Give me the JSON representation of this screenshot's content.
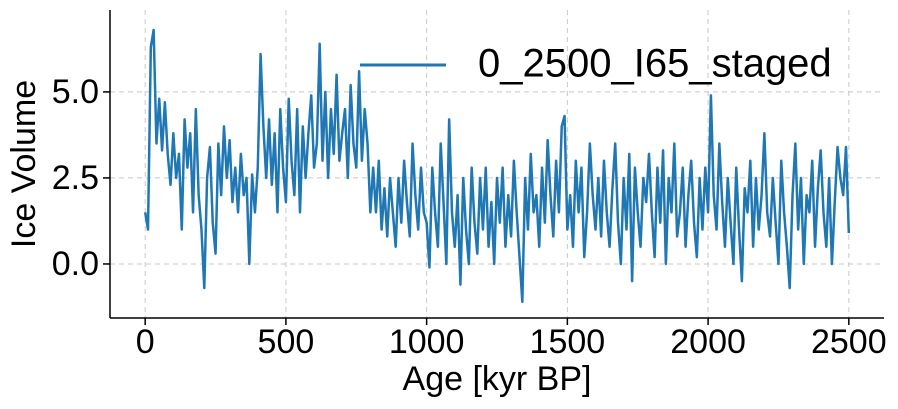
{
  "chart_data": {
    "type": "line",
    "xlabel": "Age [kyr BP]",
    "ylabel": "Ice Volume",
    "xlim": [
      -125,
      2625
    ],
    "ylim": [
      -1.57,
      7.38
    ],
    "xticks": [
      0,
      500,
      1000,
      1500,
      2000,
      2500
    ],
    "yticks": [
      {
        "value": 0,
        "label": "0.0"
      },
      2.5,
      {
        "value": 5,
        "label": "5.0"
      }
    ],
    "grid": true,
    "legend": "upper right",
    "x": [
      0,
      10,
      20,
      30,
      40,
      50,
      60,
      70,
      80,
      90,
      100,
      110,
      120,
      130,
      140,
      150,
      160,
      170,
      180,
      190,
      200,
      210,
      220,
      230,
      240,
      250,
      260,
      270,
      280,
      290,
      300,
      310,
      320,
      330,
      340,
      350,
      360,
      370,
      380,
      390,
      400,
      410,
      420,
      430,
      440,
      450,
      460,
      470,
      480,
      490,
      500,
      510,
      520,
      530,
      540,
      550,
      560,
      570,
      580,
      590,
      600,
      610,
      620,
      630,
      640,
      650,
      660,
      670,
      680,
      690,
      700,
      710,
      720,
      730,
      740,
      750,
      760,
      770,
      780,
      790,
      800,
      810,
      820,
      830,
      840,
      850,
      860,
      870,
      880,
      890,
      900,
      910,
      920,
      930,
      940,
      950,
      960,
      970,
      980,
      990,
      1000,
      1010,
      1020,
      1030,
      1040,
      1050,
      1060,
      1070,
      1080,
      1090,
      1100,
      1110,
      1120,
      1130,
      1140,
      1150,
      1160,
      1170,
      1180,
      1190,
      1200,
      1210,
      1220,
      1230,
      1240,
      1250,
      1260,
      1270,
      1280,
      1290,
      1300,
      1310,
      1320,
      1330,
      1340,
      1350,
      1360,
      1370,
      1380,
      1390,
      1400,
      1410,
      1420,
      1430,
      1440,
      1450,
      1460,
      1470,
      1480,
      1490,
      1500,
      1510,
      1520,
      1530,
      1540,
      1550,
      1560,
      1570,
      1580,
      1590,
      1600,
      1610,
      1620,
      1630,
      1640,
      1650,
      1660,
      1670,
      1680,
      1690,
      1700,
      1710,
      1720,
      1730,
      1740,
      1750,
      1760,
      1770,
      1780,
      1790,
      1800,
      1810,
      1820,
      1830,
      1840,
      1850,
      1860,
      1870,
      1880,
      1890,
      1900,
      1910,
      1920,
      1930,
      1940,
      1950,
      1960,
      1970,
      1980,
      1990,
      2000,
      2010,
      2020,
      2030,
      2040,
      2050,
      2060,
      2070,
      2080,
      2090,
      2100,
      2110,
      2120,
      2130,
      2140,
      2150,
      2160,
      2170,
      2180,
      2190,
      2200,
      2210,
      2220,
      2230,
      2240,
      2250,
      2260,
      2270,
      2280,
      2290,
      2300,
      2310,
      2320,
      2330,
      2340,
      2350,
      2360,
      2370,
      2380,
      2390,
      2400,
      2410,
      2420,
      2430,
      2440,
      2450,
      2460,
      2470,
      2480,
      2490,
      2500
    ],
    "series": [
      {
        "name": "0_2500_I65_staged",
        "color": "#1f77b4",
        "values": [
          1.5,
          1.0,
          6.3,
          6.8,
          3.5,
          4.8,
          3.3,
          4.7,
          3.2,
          2.3,
          3.8,
          2.5,
          3.2,
          1.0,
          4.2,
          2.8,
          3.8,
          1.5,
          4.5,
          2.0,
          1.0,
          -0.7,
          2.5,
          3.4,
          1.2,
          0.3,
          3.5,
          2.0,
          4.0,
          2.5,
          3.6,
          1.8,
          2.8,
          1.5,
          3.2,
          2.0,
          2.5,
          0.0,
          2.6,
          1.5,
          2.8,
          6.1,
          4.0,
          2.5,
          4.2,
          2.3,
          3.8,
          1.5,
          4.5,
          2.8,
          1.8,
          4.8,
          3.0,
          2.0,
          4.5,
          1.5,
          4.0,
          2.5,
          3.8,
          4.9,
          2.8,
          3.5,
          6.4,
          3.0,
          5.0,
          2.5,
          4.5,
          3.2,
          5.5,
          3.0,
          3.8,
          4.5,
          2.5,
          5.2,
          3.5,
          2.8,
          5.6,
          3.0,
          4.5,
          3.5,
          1.5,
          2.8,
          1.5,
          3.0,
          1.0,
          2.2,
          0.8,
          2.5,
          1.5,
          0.5,
          2.5,
          1.2,
          3.0,
          1.8,
          0.8,
          3.5,
          2.0,
          1.0,
          2.8,
          1.5,
          1.2,
          -0.1,
          2.8,
          1.5,
          0.5,
          3.5,
          1.8,
          0.0,
          4.2,
          1.5,
          0.5,
          2.0,
          -0.6,
          2.5,
          1.0,
          0.0,
          2.8,
          1.2,
          0.3,
          2.5,
          1.0,
          2.8,
          0.5,
          1.8,
          0.0,
          2.5,
          1.2,
          2.8,
          0.5,
          2.0,
          0.8,
          3.0,
          1.5,
          0.2,
          -1.1,
          2.5,
          1.0,
          3.2,
          1.5,
          2.0,
          0.5,
          2.8,
          1.2,
          3.6,
          2.0,
          0.8,
          3.0,
          1.5,
          4.0,
          4.3,
          1.0,
          2.0,
          0.5,
          3.0,
          1.5,
          2.8,
          0.2,
          1.5,
          3.5,
          2.0,
          1.0,
          2.5,
          0.8,
          3.0,
          1.5,
          0.5,
          2.2,
          3.5,
          1.2,
          0.0,
          2.5,
          1.0,
          3.2,
          -0.5,
          2.8,
          1.5,
          0.5,
          2.5,
          1.8,
          3.2,
          1.5,
          0.2,
          2.8,
          1.2,
          3.3,
          0.0,
          2.5,
          1.5,
          3.5,
          0.8,
          1.5,
          2.8,
          0.5,
          2.0,
          3.0,
          1.2,
          0.2,
          2.5,
          1.0,
          2.8,
          1.5,
          4.9,
          2.0,
          1.0,
          3.5,
          1.8,
          0.5,
          2.5,
          1.2,
          0.0,
          2.8,
          1.0,
          -0.5,
          2.2,
          1.5,
          3.0,
          0.5,
          2.5,
          1.0,
          2.0,
          3.8,
          1.5,
          0.8,
          2.5,
          1.2,
          0.0,
          3.0,
          1.5,
          0.5,
          -0.7,
          2.0,
          3.5,
          1.0,
          2.5,
          0.0,
          2.0,
          1.5,
          3.0,
          0.5,
          2.2,
          3.3,
          1.5,
          0.5,
          2.5,
          0.0,
          1.8,
          3.4,
          2.5,
          2.0,
          3.4,
          0.9
        ]
      }
    ]
  }
}
